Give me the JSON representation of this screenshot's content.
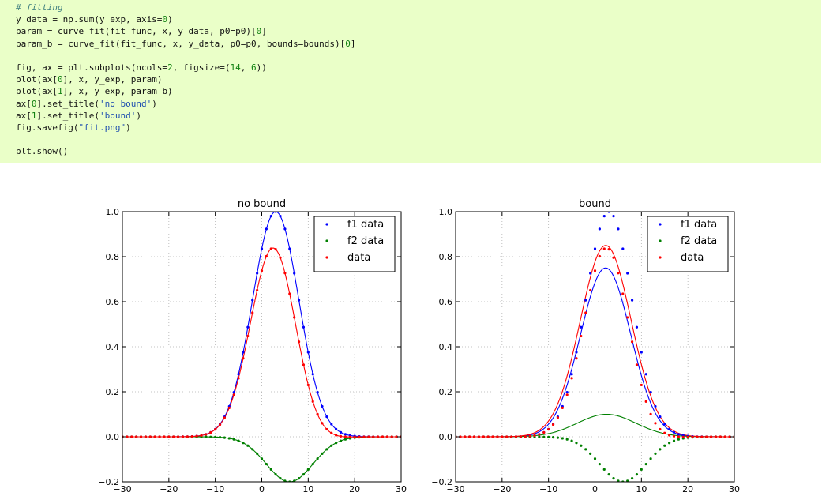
{
  "code_cell": {
    "lines": [
      [
        {
          "t": "# fitting",
          "c": "cm"
        }
      ],
      [
        {
          "t": "y_data = np.sum(y_exp, axis="
        },
        {
          "t": "0",
          "c": "num"
        },
        {
          "t": ")"
        }
      ],
      [
        {
          "t": "param = curve_fit(fit_func, x, y_data, p0=p0)["
        },
        {
          "t": "0",
          "c": "num"
        },
        {
          "t": "]"
        }
      ],
      [
        {
          "t": "param_b = curve_fit(fit_func, x, y_data, p0=p0, bounds=bounds)["
        },
        {
          "t": "0",
          "c": "num"
        },
        {
          "t": "]"
        }
      ],
      [],
      [
        {
          "t": "fig, ax = plt.subplots(ncols="
        },
        {
          "t": "2",
          "c": "num"
        },
        {
          "t": ", figsize=("
        },
        {
          "t": "14",
          "c": "num"
        },
        {
          "t": ", "
        },
        {
          "t": "6",
          "c": "num"
        },
        {
          "t": "))"
        }
      ],
      [
        {
          "t": "plot(ax["
        },
        {
          "t": "0",
          "c": "num"
        },
        {
          "t": "], x, y_exp, param)"
        }
      ],
      [
        {
          "t": "plot(ax["
        },
        {
          "t": "1",
          "c": "num"
        },
        {
          "t": "], x, y_exp, param_b)"
        }
      ],
      [
        {
          "t": "ax["
        },
        {
          "t": "0",
          "c": "num"
        },
        {
          "t": "].set_title("
        },
        {
          "t": "'no bound'",
          "c": "str"
        },
        {
          "t": ")"
        }
      ],
      [
        {
          "t": "ax["
        },
        {
          "t": "1",
          "c": "num"
        },
        {
          "t": "].set_title("
        },
        {
          "t": "'bound'",
          "c": "str"
        },
        {
          "t": ")"
        }
      ],
      [
        {
          "t": "fig.savefig("
        },
        {
          "t": "\"fit.png\"",
          "c": "str"
        },
        {
          "t": ")"
        }
      ],
      [],
      [
        {
          "t": "plt.show()"
        }
      ]
    ]
  },
  "colors": {
    "f1": "#0000ff",
    "f2": "#008000",
    "data": "#ff0000",
    "grid": "#b0b0b0"
  },
  "chart_data": [
    {
      "type": "line",
      "title": "no bound",
      "xlim": [
        -30,
        30
      ],
      "ylim": [
        -0.2,
        1.0
      ],
      "xticks": [
        -30,
        -20,
        -10,
        0,
        10,
        20,
        30
      ],
      "yticks": [
        -0.2,
        0.0,
        0.2,
        0.4,
        0.6,
        0.8,
        1.0
      ],
      "grid": true,
      "legend": "top-right",
      "data_x_range": [
        -30,
        30,
        1
      ],
      "series": [
        {
          "name": "f1 data",
          "marker": "dots",
          "color": "#0000ff",
          "amplitude": 1.0,
          "center": 3,
          "sigma": 5
        },
        {
          "name": "f2 data",
          "marker": "dots",
          "color": "#008000",
          "amplitude": -0.2,
          "center": 6,
          "sigma": 5
        },
        {
          "name": "data",
          "marker": "dots",
          "color": "#ff0000",
          "sum_of": [
            "f1 data",
            "f2 data"
          ]
        }
      ],
      "fits": [
        {
          "color": "#0000ff",
          "amplitude": 1.0,
          "center": 3,
          "sigma": 5
        },
        {
          "color": "#008000",
          "amplitude": -0.2,
          "center": 6,
          "sigma": 5
        },
        {
          "color": "#ff0000",
          "sum_of": [
            0,
            1
          ]
        }
      ]
    },
    {
      "type": "line",
      "title": "bound",
      "xlim": [
        -30,
        30
      ],
      "ylim": [
        -0.2,
        1.0
      ],
      "xticks": [
        -30,
        -20,
        -10,
        0,
        10,
        20,
        30
      ],
      "yticks": [
        -0.2,
        0.0,
        0.2,
        0.4,
        0.6,
        0.8,
        1.0
      ],
      "grid": true,
      "legend": "top-right",
      "data_x_range": [
        -30,
        30,
        1
      ],
      "series": [
        {
          "name": "f1 data",
          "marker": "dots",
          "color": "#0000ff",
          "amplitude": 1.0,
          "center": 3,
          "sigma": 5
        },
        {
          "name": "f2 data",
          "marker": "dots",
          "color": "#008000",
          "amplitude": -0.2,
          "center": 6,
          "sigma": 5
        },
        {
          "name": "data",
          "marker": "dots",
          "color": "#ff0000",
          "sum_of": [
            "f1 data",
            "f2 data"
          ]
        }
      ],
      "fits": [
        {
          "color": "#0000ff",
          "amplitude": 0.75,
          "center": 2.3,
          "sigma": 5.4
        },
        {
          "color": "#008000",
          "amplitude": 0.1,
          "center": 2.5,
          "sigma": 6.3
        },
        {
          "color": "#ff0000",
          "sum_of": [
            0,
            1
          ]
        }
      ]
    }
  ]
}
